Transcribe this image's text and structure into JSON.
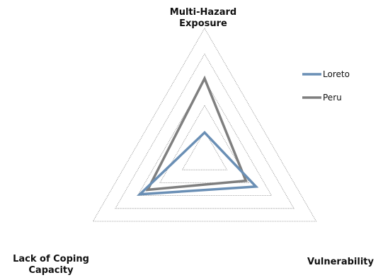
{
  "chart_data": {
    "type": "radar",
    "axes": [
      {
        "label_lines": [
          "Multi-Hazard",
          "Exposure"
        ]
      },
      {
        "label_lines": [
          "Vulnerability"
        ]
      },
      {
        "label_lines": [
          "Lack of Coping",
          "Capacity"
        ]
      }
    ],
    "rings": 5,
    "rmax": 1.0,
    "grid": true,
    "legend": {
      "position": "right",
      "entries": [
        "Loreto",
        "Peru"
      ]
    },
    "series": [
      {
        "name": "Peru",
        "values": [
          0.61,
          0.37,
          0.51
        ],
        "color": "#7f7f7f"
      },
      {
        "name": "Loreto",
        "values": [
          0.19,
          0.46,
          0.58
        ],
        "color": "#6a8fb5"
      }
    ]
  }
}
